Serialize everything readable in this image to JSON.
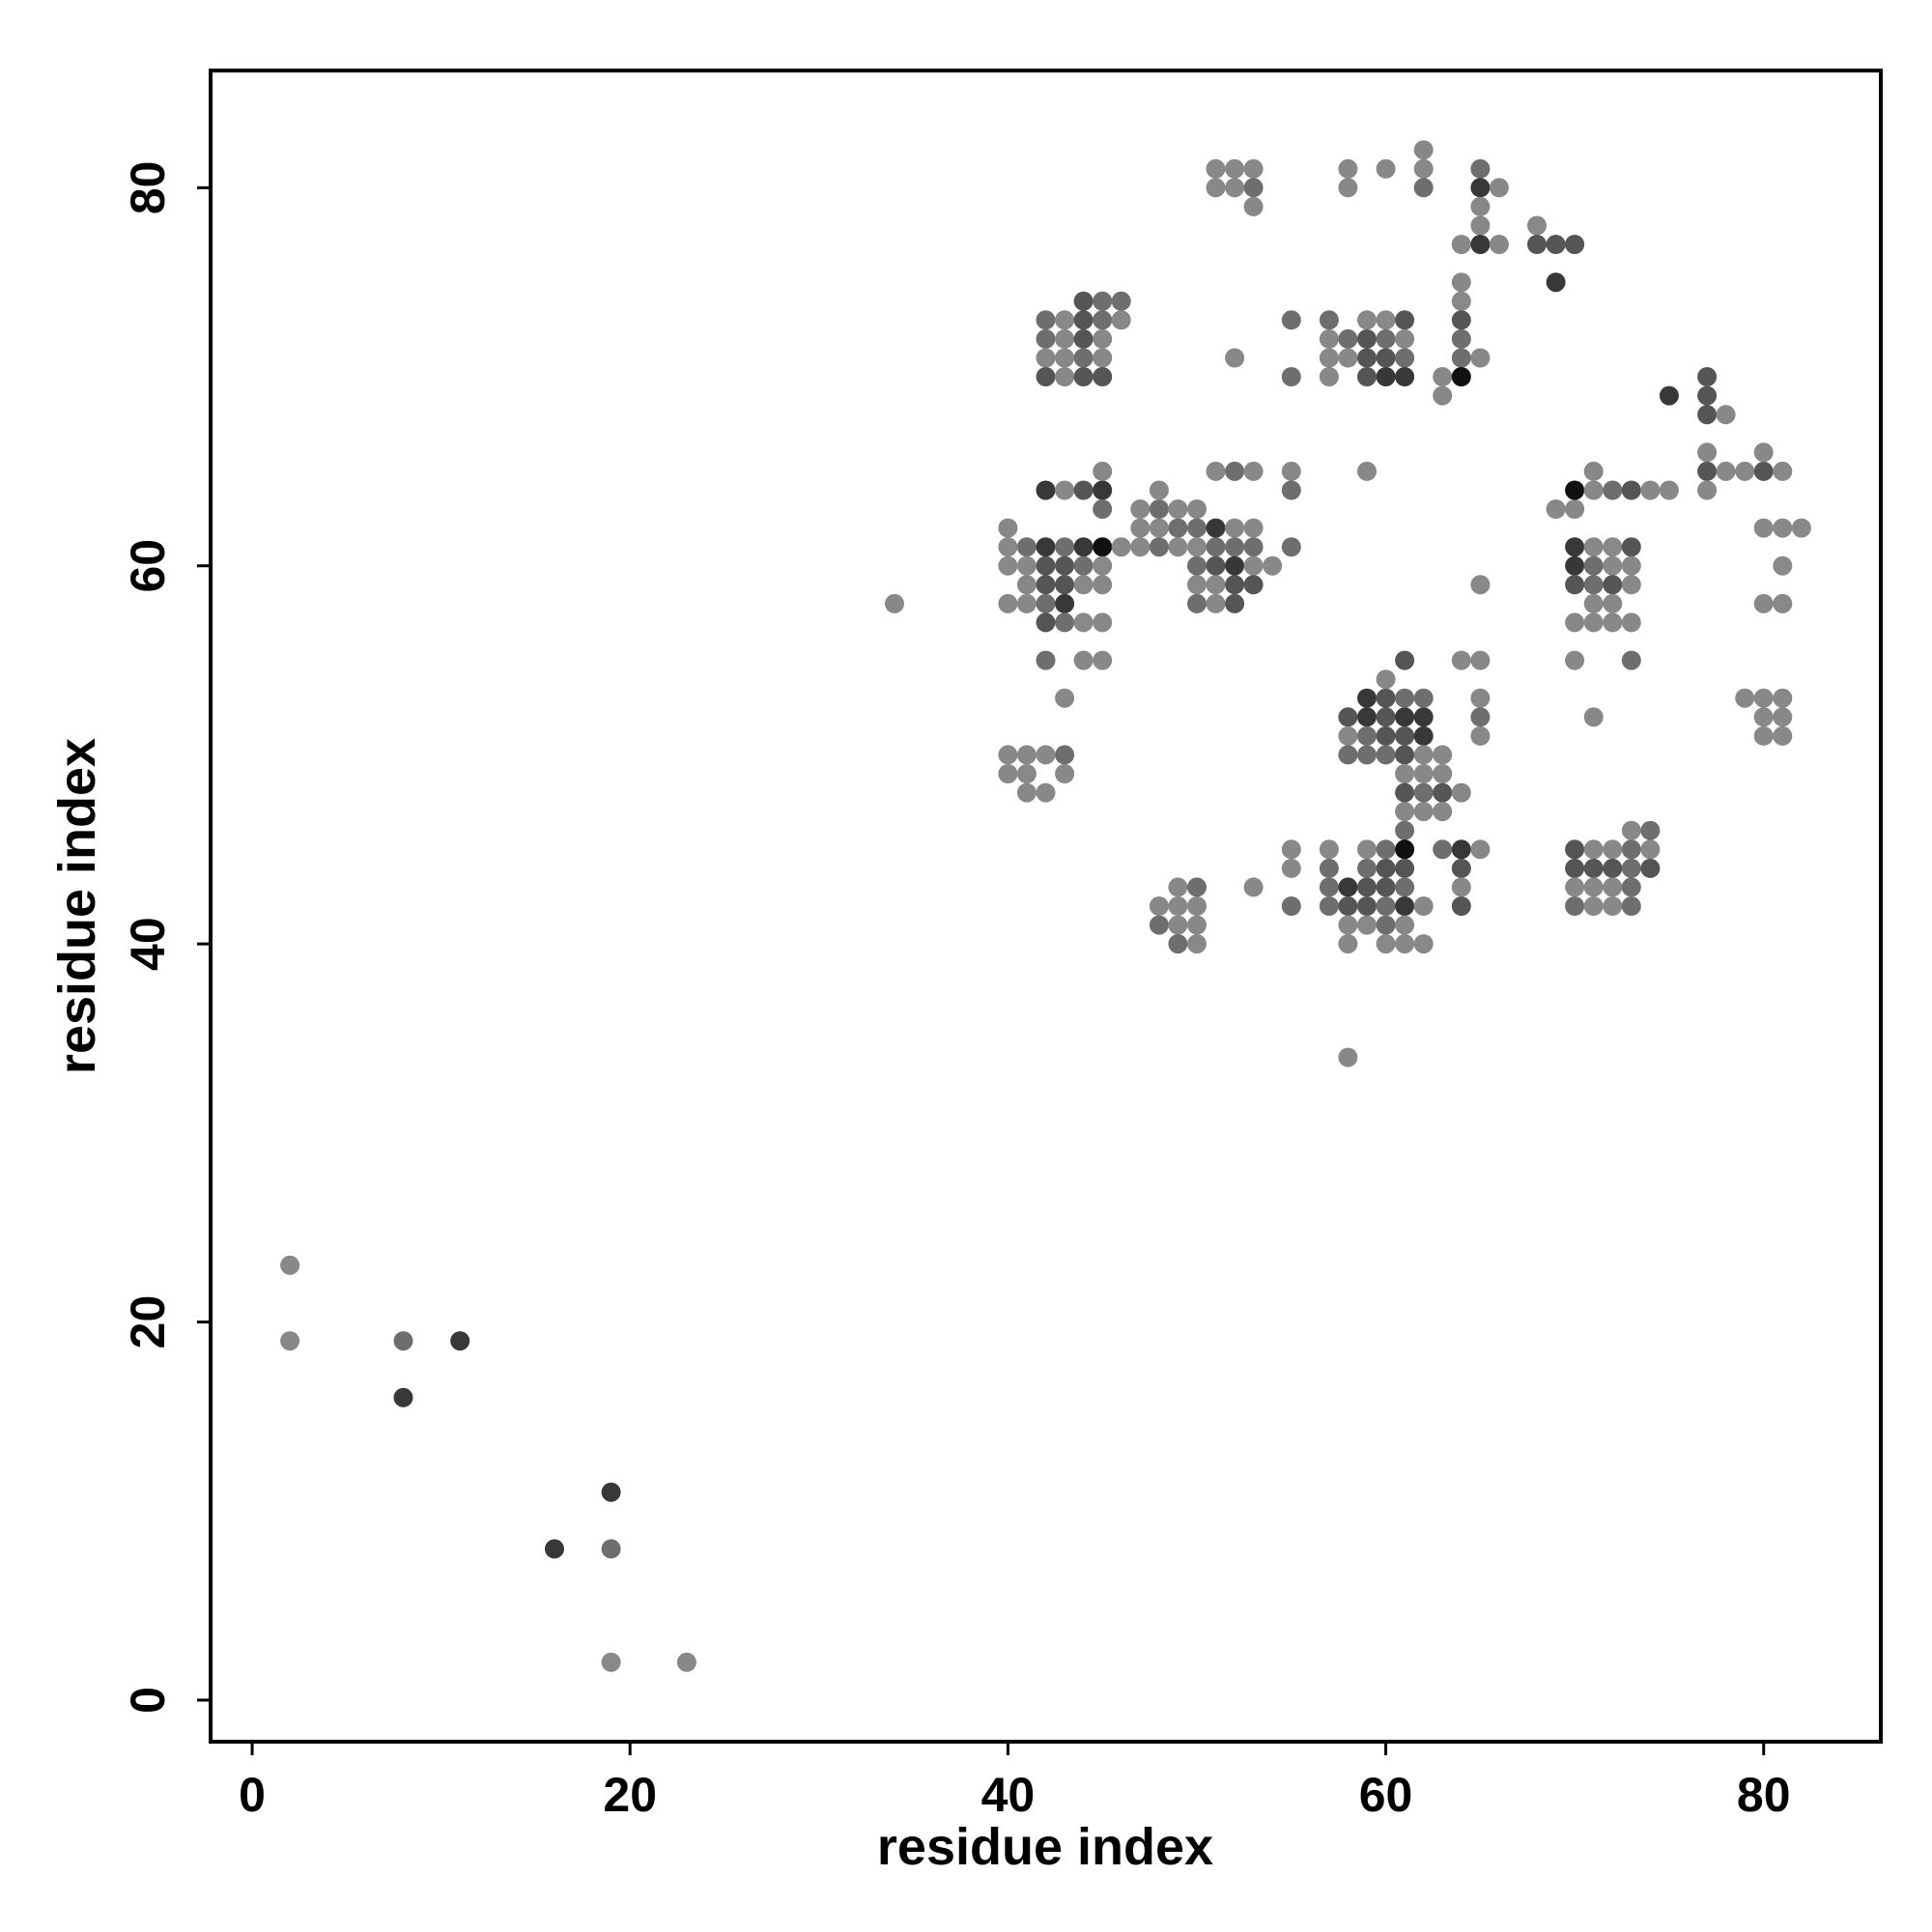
{
  "chart_data": {
    "type": "scatter",
    "title": "",
    "xlabel": "residue index",
    "ylabel": "residue index",
    "xlim": [
      -2.2,
      86.2
    ],
    "ylim": [
      -2.2,
      86.2
    ],
    "x_ticks": [
      "0",
      "20",
      "40",
      "60",
      "80"
    ],
    "y_ticks": [
      "0",
      "20",
      "40",
      "60",
      "80"
    ],
    "tick_values": [
      0,
      20,
      40,
      60,
      80
    ],
    "grid": false,
    "legend": "none",
    "marker_color_encoding": "grayscale shade (darker = stronger contact)",
    "shade_palette": [
      "#888888",
      "#6e6e6e",
      "#555555",
      "#383838",
      "#111111"
    ],
    "points": [
      [
        2,
        23,
        0
      ],
      [
        2,
        19,
        0
      ],
      [
        8,
        19,
        1
      ],
      [
        11,
        19,
        3
      ],
      [
        8,
        16,
        3
      ],
      [
        19,
        11,
        3
      ],
      [
        16,
        8,
        3
      ],
      [
        19,
        8,
        1
      ],
      [
        19,
        2,
        0
      ],
      [
        23,
        2,
        0
      ],
      [
        34,
        58,
        0
      ],
      [
        58,
        34,
        0
      ],
      [
        51,
        81,
        0
      ],
      [
        52,
        81,
        0
      ],
      [
        53,
        81,
        0
      ],
      [
        51,
        80,
        0
      ],
      [
        52,
        80,
        0
      ],
      [
        53,
        80,
        1
      ],
      [
        53,
        79,
        0
      ],
      [
        58,
        81,
        0
      ],
      [
        58,
        80,
        0
      ],
      [
        60,
        81,
        0
      ],
      [
        62,
        82,
        0
      ],
      [
        62,
        81,
        0
      ],
      [
        62,
        80,
        1
      ],
      [
        65,
        81,
        1
      ],
      [
        65,
        80,
        3
      ],
      [
        66,
        80,
        0
      ],
      [
        65,
        79,
        0
      ],
      [
        65,
        78,
        0
      ],
      [
        64,
        77,
        0
      ],
      [
        65,
        77,
        3
      ],
      [
        66,
        77,
        0
      ],
      [
        68,
        78,
        0
      ],
      [
        68,
        77,
        2
      ],
      [
        69,
        77,
        2
      ],
      [
        70,
        77,
        2
      ],
      [
        69,
        75,
        3
      ],
      [
        42,
        73,
        1
      ],
      [
        43,
        73,
        0
      ],
      [
        44,
        73,
        2
      ],
      [
        45,
        73,
        1
      ],
      [
        44,
        74,
        2
      ],
      [
        45,
        74,
        1
      ],
      [
        46,
        74,
        1
      ],
      [
        46,
        73,
        0
      ],
      [
        42,
        72,
        1
      ],
      [
        43,
        72,
        0
      ],
      [
        44,
        72,
        2
      ],
      [
        45,
        72,
        0
      ],
      [
        42,
        71,
        0
      ],
      [
        43,
        71,
        0
      ],
      [
        44,
        71,
        1
      ],
      [
        45,
        71,
        0
      ],
      [
        42,
        70,
        2
      ],
      [
        43,
        70,
        0
      ],
      [
        44,
        70,
        2
      ],
      [
        45,
        70,
        2
      ],
      [
        55,
        73,
        1
      ],
      [
        52,
        71,
        0
      ],
      [
        55,
        70,
        1
      ],
      [
        57,
        73,
        1
      ],
      [
        57,
        72,
        0
      ],
      [
        58,
        72,
        1
      ],
      [
        59,
        73,
        0
      ],
      [
        60,
        73,
        0
      ],
      [
        61,
        73,
        2
      ],
      [
        59,
        72,
        2
      ],
      [
        60,
        72,
        1
      ],
      [
        61,
        72,
        0
      ],
      [
        57,
        71,
        0
      ],
      [
        58,
        71,
        0
      ],
      [
        59,
        71,
        2
      ],
      [
        60,
        71,
        2
      ],
      [
        61,
        71,
        1
      ],
      [
        57,
        70,
        0
      ],
      [
        59,
        70,
        2
      ],
      [
        60,
        70,
        3
      ],
      [
        61,
        70,
        3
      ],
      [
        64,
        75,
        0
      ],
      [
        64,
        74,
        0
      ],
      [
        64,
        73,
        2
      ],
      [
        64,
        72,
        1
      ],
      [
        64,
        71,
        1
      ],
      [
        65,
        71,
        0
      ],
      [
        63,
        70,
        0
      ],
      [
        64,
        70,
        4
      ],
      [
        63,
        69,
        0
      ],
      [
        75,
        69,
        3
      ],
      [
        77,
        70,
        2
      ],
      [
        77,
        69,
        2
      ],
      [
        77,
        68,
        2
      ],
      [
        78,
        68,
        0
      ],
      [
        77,
        66,
        0
      ],
      [
        77,
        65,
        2
      ],
      [
        78,
        65,
        0
      ],
      [
        79,
        65,
        0
      ],
      [
        80,
        65,
        2
      ],
      [
        81,
        65,
        0
      ],
      [
        80,
        66,
        0
      ],
      [
        77,
        64,
        0
      ],
      [
        41,
        61,
        1
      ],
      [
        40,
        61,
        0
      ],
      [
        40,
        62,
        0
      ],
      [
        40,
        60,
        0
      ],
      [
        41,
        60,
        0
      ],
      [
        42,
        61,
        3
      ],
      [
        43,
        61,
        1
      ],
      [
        44,
        61,
        3
      ],
      [
        45,
        61,
        4
      ],
      [
        46,
        61,
        0
      ],
      [
        42,
        60,
        2
      ],
      [
        43,
        60,
        2
      ],
      [
        44,
        60,
        1
      ],
      [
        45,
        60,
        0
      ],
      [
        41,
        59,
        0
      ],
      [
        42,
        59,
        2
      ],
      [
        43,
        59,
        2
      ],
      [
        44,
        59,
        0
      ],
      [
        45,
        59,
        0
      ],
      [
        40,
        58,
        0
      ],
      [
        41,
        58,
        0
      ],
      [
        42,
        58,
        1
      ],
      [
        43,
        58,
        3
      ],
      [
        42,
        57,
        2
      ],
      [
        43,
        57,
        1
      ],
      [
        44,
        57,
        0
      ],
      [
        45,
        57,
        0
      ],
      [
        42,
        55,
        1
      ],
      [
        44,
        55,
        0
      ],
      [
        45,
        55,
        0
      ],
      [
        43,
        53,
        0
      ],
      [
        42,
        64,
        3
      ],
      [
        43,
        64,
        0
      ],
      [
        44,
        64,
        2
      ],
      [
        45,
        64,
        3
      ],
      [
        45,
        65,
        0
      ],
      [
        45,
        63,
        1
      ],
      [
        47,
        63,
        0
      ],
      [
        48,
        63,
        1
      ],
      [
        49,
        63,
        0
      ],
      [
        50,
        63,
        0
      ],
      [
        47,
        62,
        0
      ],
      [
        48,
        62,
        0
      ],
      [
        49,
        62,
        1
      ],
      [
        50,
        62,
        1
      ],
      [
        51,
        62,
        3
      ],
      [
        52,
        62,
        0
      ],
      [
        53,
        62,
        0
      ],
      [
        47,
        61,
        0
      ],
      [
        48,
        61,
        1
      ],
      [
        49,
        61,
        0
      ],
      [
        50,
        61,
        0
      ],
      [
        51,
        61,
        1
      ],
      [
        52,
        61,
        1
      ],
      [
        53,
        61,
        1
      ],
      [
        50,
        60,
        1
      ],
      [
        51,
        60,
        2
      ],
      [
        52,
        60,
        3
      ],
      [
        53,
        60,
        0
      ],
      [
        54,
        60,
        0
      ],
      [
        50,
        59,
        0
      ],
      [
        51,
        59,
        0
      ],
      [
        52,
        59,
        2
      ],
      [
        53,
        59,
        2
      ],
      [
        50,
        58,
        1
      ],
      [
        51,
        58,
        0
      ],
      [
        52,
        58,
        2
      ],
      [
        48,
        64,
        0
      ],
      [
        51,
        65,
        0
      ],
      [
        52,
        65,
        1
      ],
      [
        53,
        65,
        0
      ],
      [
        55,
        65,
        0
      ],
      [
        55,
        64,
        1
      ],
      [
        55,
        61,
        1
      ],
      [
        59,
        65,
        0
      ],
      [
        69,
        63,
        0
      ],
      [
        70,
        63,
        0
      ],
      [
        70,
        64,
        4
      ],
      [
        71,
        64,
        0
      ],
      [
        71,
        65,
        0
      ],
      [
        72,
        64,
        1
      ],
      [
        73,
        64,
        2
      ],
      [
        74,
        64,
        0
      ],
      [
        75,
        64,
        0
      ],
      [
        70,
        61,
        3
      ],
      [
        71,
        61,
        0
      ],
      [
        72,
        61,
        0
      ],
      [
        73,
        61,
        2
      ],
      [
        70,
        60,
        3
      ],
      [
        71,
        60,
        1
      ],
      [
        72,
        60,
        0
      ],
      [
        73,
        60,
        0
      ],
      [
        70,
        59,
        2
      ],
      [
        71,
        59,
        1
      ],
      [
        72,
        59,
        2
      ],
      [
        73,
        59,
        0
      ],
      [
        71,
        58,
        0
      ],
      [
        72,
        58,
        0
      ],
      [
        70,
        57,
        0
      ],
      [
        71,
        57,
        0
      ],
      [
        72,
        57,
        0
      ],
      [
        73,
        57,
        0
      ],
      [
        70,
        55,
        0
      ],
      [
        73,
        55,
        1
      ],
      [
        71,
        52,
        0
      ],
      [
        65,
        59,
        0
      ],
      [
        80,
        62,
        0
      ],
      [
        81,
        62,
        0
      ],
      [
        82,
        62,
        0
      ],
      [
        81,
        60,
        0
      ],
      [
        80,
        58,
        0
      ],
      [
        81,
        58,
        0
      ],
      [
        79,
        53,
        0
      ],
      [
        80,
        53,
        0
      ],
      [
        81,
        53,
        0
      ],
      [
        80,
        52,
        0
      ],
      [
        81,
        52,
        0
      ],
      [
        80,
        51,
        0
      ],
      [
        81,
        51,
        0
      ],
      [
        40,
        50,
        0
      ],
      [
        41,
        50,
        0
      ],
      [
        42,
        50,
        0
      ],
      [
        43,
        50,
        1
      ],
      [
        40,
        49,
        0
      ],
      [
        41,
        49,
        0
      ],
      [
        43,
        49,
        0
      ],
      [
        41,
        48,
        0
      ],
      [
        42,
        48,
        0
      ],
      [
        58,
        52,
        2
      ],
      [
        59,
        52,
        3
      ],
      [
        60,
        52,
        2
      ],
      [
        61,
        52,
        3
      ],
      [
        62,
        52,
        3
      ],
      [
        59,
        53,
        3
      ],
      [
        60,
        53,
        2
      ],
      [
        61,
        53,
        1
      ],
      [
        62,
        53,
        1
      ],
      [
        60,
        54,
        0
      ],
      [
        61,
        55,
        2
      ],
      [
        58,
        51,
        0
      ],
      [
        59,
        51,
        1
      ],
      [
        60,
        51,
        2
      ],
      [
        61,
        51,
        2
      ],
      [
        62,
        51,
        3
      ],
      [
        58,
        50,
        1
      ],
      [
        59,
        50,
        1
      ],
      [
        60,
        50,
        1
      ],
      [
        61,
        50,
        2
      ],
      [
        62,
        50,
        0
      ],
      [
        63,
        50,
        0
      ],
      [
        61,
        49,
        0
      ],
      [
        62,
        49,
        0
      ],
      [
        63,
        49,
        0
      ],
      [
        61,
        48,
        2
      ],
      [
        62,
        48,
        1
      ],
      [
        63,
        48,
        2
      ],
      [
        64,
        48,
        0
      ],
      [
        61,
        47,
        0
      ],
      [
        62,
        47,
        0
      ],
      [
        63,
        47,
        0
      ],
      [
        61,
        46,
        1
      ],
      [
        64,
        55,
        0
      ],
      [
        65,
        55,
        0
      ],
      [
        65,
        53,
        0
      ],
      [
        65,
        52,
        1
      ],
      [
        65,
        51,
        0
      ],
      [
        55,
        45,
        0
      ],
      [
        57,
        45,
        0
      ],
      [
        59,
        45,
        0
      ],
      [
        60,
        45,
        1
      ],
      [
        61,
        45,
        4
      ],
      [
        63,
        45,
        1
      ],
      [
        64,
        45,
        3
      ],
      [
        65,
        45,
        0
      ],
      [
        55,
        44,
        0
      ],
      [
        57,
        44,
        1
      ],
      [
        59,
        44,
        1
      ],
      [
        60,
        44,
        2
      ],
      [
        61,
        44,
        2
      ],
      [
        64,
        44,
        2
      ],
      [
        57,
        43,
        1
      ],
      [
        58,
        43,
        3
      ],
      [
        59,
        43,
        2
      ],
      [
        60,
        43,
        2
      ],
      [
        61,
        43,
        1
      ],
      [
        64,
        43,
        0
      ],
      [
        55,
        42,
        1
      ],
      [
        57,
        42,
        1
      ],
      [
        58,
        42,
        2
      ],
      [
        59,
        42,
        2
      ],
      [
        60,
        42,
        1
      ],
      [
        61,
        42,
        3
      ],
      [
        62,
        42,
        0
      ],
      [
        64,
        42,
        2
      ],
      [
        58,
        41,
        0
      ],
      [
        59,
        41,
        0
      ],
      [
        60,
        41,
        1
      ],
      [
        61,
        41,
        0
      ],
      [
        58,
        40,
        0
      ],
      [
        60,
        40,
        0
      ],
      [
        61,
        40,
        0
      ],
      [
        62,
        40,
        0
      ],
      [
        53,
        43,
        0
      ],
      [
        48,
        42,
        0
      ],
      [
        48,
        41,
        1
      ],
      [
        49,
        43,
        0
      ],
      [
        50,
        43,
        1
      ],
      [
        49,
        42,
        0
      ],
      [
        50,
        42,
        0
      ],
      [
        49,
        41,
        0
      ],
      [
        50,
        41,
        0
      ],
      [
        49,
        40,
        1
      ],
      [
        50,
        40,
        0
      ],
      [
        70,
        45,
        2
      ],
      [
        71,
        45,
        0
      ],
      [
        72,
        45,
        0
      ],
      [
        73,
        45,
        1
      ],
      [
        74,
        45,
        0
      ],
      [
        73,
        46,
        0
      ],
      [
        74,
        46,
        1
      ],
      [
        70,
        44,
        2
      ],
      [
        71,
        44,
        2
      ],
      [
        72,
        44,
        2
      ],
      [
        73,
        44,
        1
      ],
      [
        74,
        44,
        2
      ],
      [
        70,
        43,
        0
      ],
      [
        71,
        43,
        0
      ],
      [
        72,
        43,
        0
      ],
      [
        73,
        43,
        1
      ],
      [
        70,
        42,
        1
      ],
      [
        71,
        42,
        0
      ],
      [
        72,
        42,
        0
      ],
      [
        73,
        42,
        1
      ]
    ]
  }
}
